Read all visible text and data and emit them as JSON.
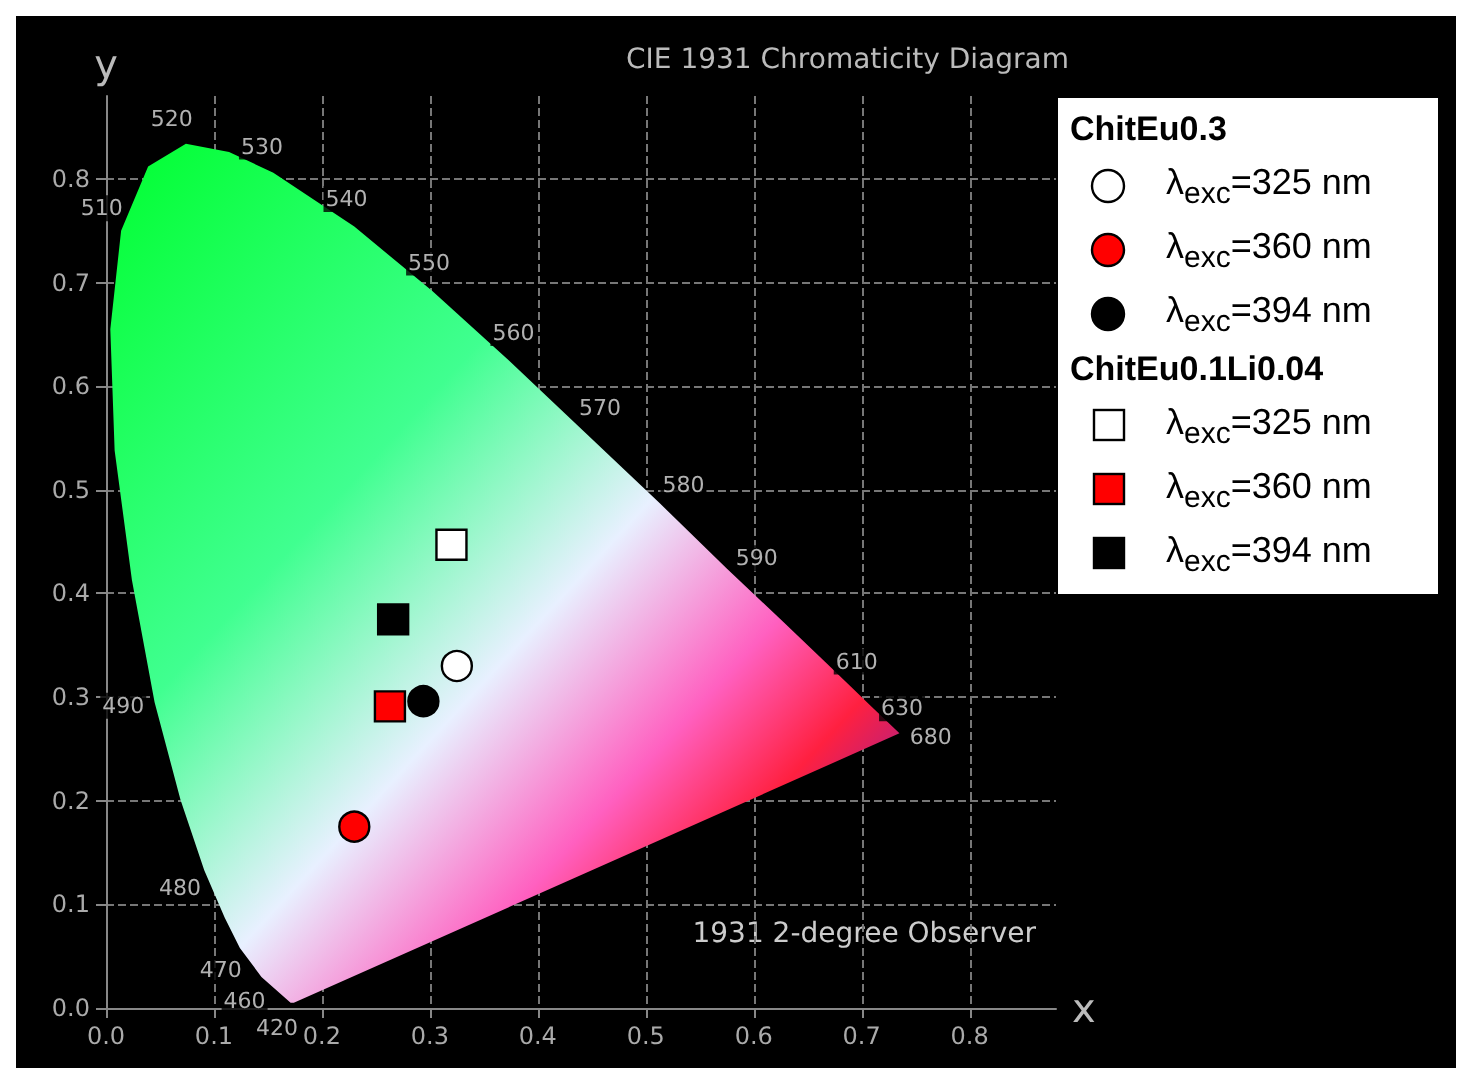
{
  "chart_data": {
    "type": "scatter",
    "title": "CIE 1931 Chromaticity Diagram",
    "xlabel": "x",
    "ylabel": "y",
    "xlim": [
      0,
      0.88
    ],
    "ylim": [
      0,
      0.88
    ],
    "xticks": [
      {
        "value": 0,
        "label": "0.0"
      },
      0.1,
      0.2,
      0.3,
      0.4,
      0.5,
      0.6,
      0.7,
      0.8
    ],
    "yticks": [
      {
        "value": 0,
        "label": "0.0"
      },
      0.1,
      0.2,
      0.3,
      0.4,
      0.5,
      0.6,
      0.7,
      0.8
    ],
    "grid": true,
    "legend": "top right",
    "series": [
      {
        "type": "area",
        "x": [
          0.174,
          0.171,
          0.144,
          0.124,
          0.11,
          0.091,
          0.069,
          0.045,
          0.024,
          0.008,
          0.004,
          0.014,
          0.039,
          0.074,
          0.114,
          0.155,
          0.23,
          0.302,
          0.373,
          0.444,
          0.513,
          0.575,
          0.627,
          0.666,
          0.692,
          0.708,
          0.735
        ],
        "values": [
          0.005,
          0.005,
          0.03,
          0.058,
          0.087,
          0.133,
          0.201,
          0.295,
          0.413,
          0.538,
          0.655,
          0.75,
          0.812,
          0.834,
          0.826,
          0.806,
          0.754,
          0.692,
          0.625,
          0.555,
          0.487,
          0.424,
          0.373,
          0.334,
          0.308,
          0.292,
          0.265
        ]
      },
      {
        "name": "λ$_{exc}$=325 nm",
        "marker": "circle",
        "color": "#ffffff",
        "x": [
          0.325
        ],
        "values": [
          0.33
        ]
      },
      {
        "name": "λ$_{exc}$=360 nm",
        "marker": "circle",
        "color": "#ff0000",
        "x": [
          0.23
        ],
        "values": [
          0.175
        ]
      },
      {
        "name": "λ$_{exc}$=394 nm",
        "marker": "circle",
        "color": "#000000",
        "x": [
          0.294
        ],
        "values": [
          0.296
        ]
      },
      {
        "name": "λ$_{exc}$=325 nm",
        "marker": "square",
        "color": "#ffffff",
        "x": [
          0.32
        ],
        "values": [
          0.447
        ]
      },
      {
        "name": "λ$_{exc}$=360 nm",
        "marker": "square",
        "color": "#ff0000",
        "x": [
          0.263
        ],
        "values": [
          0.291
        ]
      },
      {
        "name": "λ$_{exc}$=394 nm",
        "marker": "square",
        "color": "#000000",
        "x": [
          0.266
        ],
        "values": [
          0.375
        ]
      }
    ],
    "annotations": [
      "ChitEu0.3",
      "ChitEu0.1Li0.04",
      "1931 2-degree Observer",
      {
        "text": "420",
        "x": 0.1714,
        "y": 0.0051
      },
      {
        "text": "460",
        "x": 0.144,
        "y": 0.0297
      },
      {
        "text": "470",
        "x": 0.1241,
        "y": 0.0578
      },
      {
        "text": "480",
        "x": 0.0913,
        "y": 0.1327
      },
      {
        "text": "490",
        "x": 0.0454,
        "y": 0.295
      },
      {
        "text": "510",
        "x": 0.0139,
        "y": 0.7502
      },
      {
        "text": "520",
        "x": 0.0743,
        "y": 0.8338
      },
      {
        "text": "530",
        "x": 0.1547,
        "y": 0.8059
      },
      {
        "text": "540",
        "x": 0.2296,
        "y": 0.7543
      },
      {
        "text": "550",
        "x": 0.3016,
        "y": 0.6923
      },
      {
        "text": "560",
        "x": 0.3731,
        "y": 0.6245
      },
      {
        "text": "570",
        "x": 0.4441,
        "y": 0.5547
      },
      {
        "text": "580",
        "x": 0.5125,
        "y": 0.4866
      },
      {
        "text": "590",
        "x": 0.5752,
        "y": 0.4242
      },
      {
        "text": "610",
        "x": 0.6658,
        "y": 0.334
      },
      {
        "text": "630",
        "x": 0.7079,
        "y": 0.292
      },
      {
        "text": "680",
        "x": 0.7347,
        "y": 0.2653
      }
    ]
  }
}
